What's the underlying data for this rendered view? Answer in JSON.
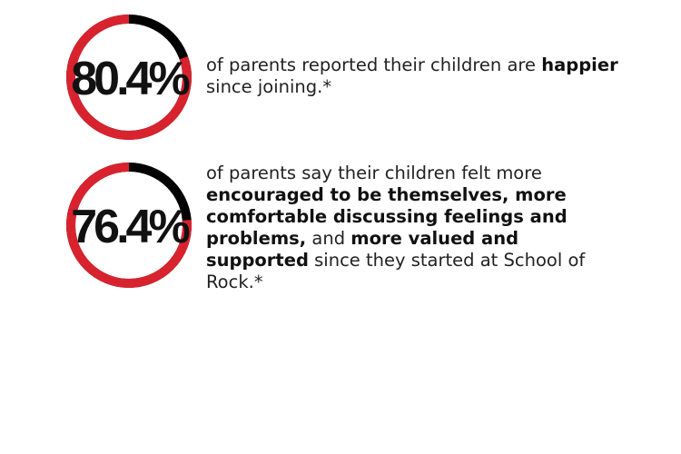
{
  "colors": {
    "filled": "#d8232f",
    "remainder": "#000000",
    "text": "#222222"
  },
  "chart_data": [
    {
      "type": "pie",
      "label": "80.4%",
      "value": 80.4,
      "max": 100,
      "segments": [
        {
          "text": "of parents reported their children are ",
          "bold": false
        },
        {
          "text": "happier",
          "bold": true
        },
        {
          "text": " since joining.*",
          "bold": false
        }
      ]
    },
    {
      "type": "pie",
      "label": "76.4%",
      "value": 76.4,
      "max": 100,
      "segments": [
        {
          "text": "of parents say their children felt more ",
          "bold": false
        },
        {
          "text": "encouraged to be themselves, more comfortable discussing feelings and problems,",
          "bold": true
        },
        {
          "text": " and ",
          "bold": false
        },
        {
          "text": "more valued and supported",
          "bold": true
        },
        {
          "text": " since they started at School of Rock.*",
          "bold": false
        }
      ]
    }
  ]
}
